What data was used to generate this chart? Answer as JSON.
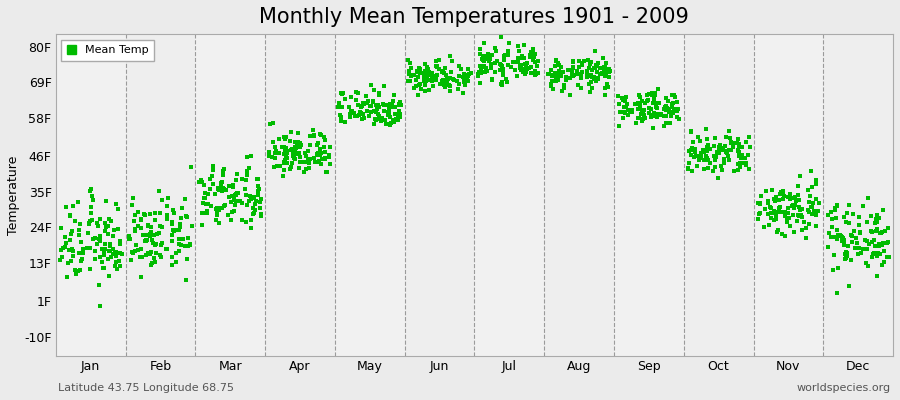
{
  "title": "Monthly Mean Temperatures 1901 - 2009",
  "ylabel": "Temperature",
  "xlabel_bottom_left": "Latitude 43.75 Longitude 68.75",
  "xlabel_bottom_right": "worldspecies.org",
  "legend_label": "Mean Temp",
  "marker_color": "#00BB00",
  "bg_color": "#EBEBEB",
  "plot_bg_color": "#F5F5F5",
  "ytick_labels": [
    "-10F",
    "1F",
    "13F",
    "24F",
    "35F",
    "46F",
    "58F",
    "69F",
    "80F"
  ],
  "ytick_values": [
    -10,
    1,
    13,
    24,
    35,
    46,
    58,
    69,
    80
  ],
  "ylim": [
    -16,
    84
  ],
  "months": [
    "Jan",
    "Feb",
    "Mar",
    "Apr",
    "May",
    "Jun",
    "Jul",
    "Aug",
    "Sep",
    "Oct",
    "Nov",
    "Dec"
  ],
  "title_fontsize": 15,
  "axis_label_fontsize": 9,
  "tick_fontsize": 9,
  "month_means": [
    19.0,
    21.0,
    33.0,
    47.0,
    61.0,
    71.0,
    74.5,
    71.5,
    61.0,
    46.5,
    30.0,
    21.0
  ],
  "month_stds": [
    6.5,
    5.5,
    5.0,
    3.5,
    3.0,
    2.5,
    2.5,
    2.5,
    2.5,
    3.5,
    4.5,
    5.5
  ],
  "n_years": 109
}
